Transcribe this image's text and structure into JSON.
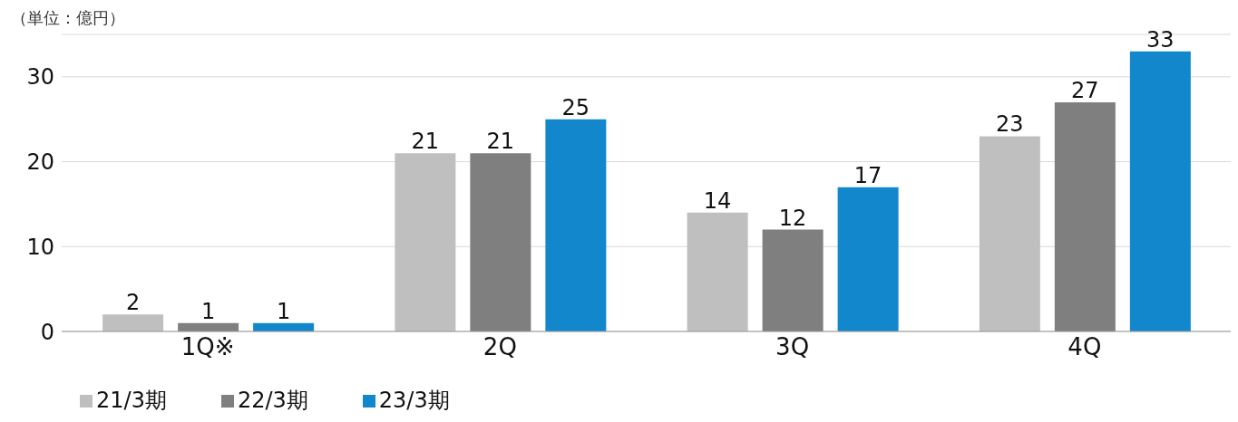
{
  "chart_data": {
    "type": "bar",
    "ylabel": "（単位：億円）",
    "categories": [
      "1Q※",
      "2Q",
      "3Q",
      "4Q"
    ],
    "series": [
      {
        "name": "21/3期",
        "color": "#bfbfbf",
        "values": [
          2,
          21,
          14,
          23
        ]
      },
      {
        "name": "22/3期",
        "color": "#7f7f7f",
        "values": [
          1,
          21,
          12,
          27
        ]
      },
      {
        "name": "23/3期",
        "color": "#1387cc",
        "values": [
          1,
          25,
          17,
          33
        ]
      }
    ],
    "ylim": [
      0,
      35
    ],
    "yticks": [
      0,
      10,
      20,
      30
    ],
    "grid": "y",
    "legend": "bottom left",
    "data_labels": true
  }
}
